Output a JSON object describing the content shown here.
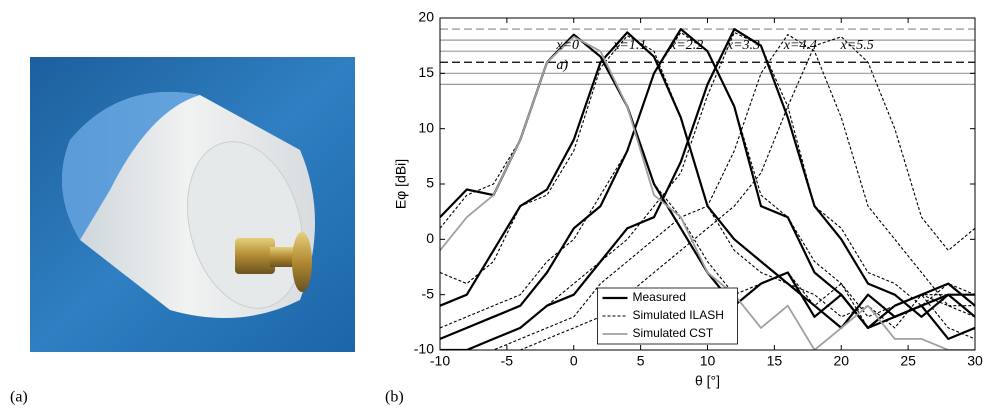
{
  "figure": {
    "panel_labels": [
      "(a)",
      "(b)"
    ]
  },
  "chart_data": {
    "type": "line",
    "x_label": "θ [°]",
    "y_label": "Eφ [dBi]",
    "panel_tag": "a)",
    "annotations": [
      "x=0",
      "x=1.1",
      "x=2.2",
      "x=3.3",
      "x=4.4",
      "x=5.5"
    ],
    "xlim": [
      -10,
      30
    ],
    "xticks": [
      -10,
      -5,
      0,
      5,
      10,
      15,
      20,
      25,
      30
    ],
    "ylim": [
      -10,
      20
    ],
    "yticks": [
      -10,
      -5,
      0,
      5,
      10,
      15,
      20
    ],
    "grid": false,
    "legend_position": "lower center",
    "hlines": [
      {
        "value": 19,
        "color": "#888888",
        "dash": true
      },
      {
        "value": 18,
        "color": "#999999",
        "dash": false
      },
      {
        "value": 17,
        "color": "#999999",
        "dash": false
      },
      {
        "value": 16,
        "color": "#000000",
        "dash": true
      },
      {
        "value": 15,
        "color": "#999999",
        "dash": false
      },
      {
        "value": 14,
        "color": "#999999",
        "dash": false
      }
    ],
    "x": [
      -10,
      -8,
      -6,
      -4,
      -2,
      0,
      2,
      4,
      6,
      8,
      10,
      12,
      14,
      16,
      18,
      20,
      22,
      24,
      26,
      28,
      30
    ],
    "series": [
      {
        "name": "Measured",
        "color": "#000000",
        "width": 2.2,
        "dash": false,
        "curves": [
          {
            "values": [
              2,
              4.5,
              4,
              9,
              16,
              18.5,
              16.5,
              12,
              5,
              1,
              -3,
              -6,
              -4,
              -3,
              -7,
              -5,
              -8,
              -7,
              -6,
              -9,
              -8
            ]
          },
          {
            "values": [
              -6,
              -5,
              -1,
              3,
              4.5,
              9,
              16,
              18.7,
              16.5,
              11,
              3,
              0,
              -2,
              -4,
              -6,
              -8,
              -5,
              -7,
              -6,
              -5,
              -7
            ]
          },
          {
            "values": [
              -9,
              -8,
              -7,
              -6,
              -3,
              1,
              3,
              8,
              15,
              19,
              17,
              12,
              3,
              2,
              -3,
              -5,
              -8,
              -6,
              -5,
              -4,
              -6
            ]
          },
          {
            "values": [
              -10,
              -10,
              -9,
              -8,
              -6,
              -5,
              -2,
              1,
              2,
              7,
              14,
              19,
              17.5,
              11,
              3,
              0,
              -4,
              -5,
              -7,
              -5,
              -5
            ]
          }
        ]
      },
      {
        "name": "Simulated ILASH",
        "color": "#000000",
        "width": 1.1,
        "dash": true,
        "curves": [
          {
            "values": [
              1,
              4,
              5,
              9,
              16,
              18.3,
              17,
              12,
              5,
              2,
              -2,
              -5,
              -4,
              -3,
              -6,
              -4,
              -8,
              -6,
              -5,
              -8,
              -9
            ]
          },
          {
            "values": [
              -3,
              -4,
              -2,
              3,
              4,
              8,
              15.5,
              18.4,
              17,
              11,
              3,
              -1,
              -3,
              -4,
              -5,
              -7,
              -6,
              -8,
              -5,
              -6,
              -7
            ]
          },
          {
            "values": [
              -8,
              -7,
              -6,
              -5,
              -2,
              0,
              4,
              8,
              15,
              18.7,
              17,
              12,
              4,
              2,
              -2,
              -4,
              -7,
              -6,
              -5,
              -5,
              -7
            ]
          },
          {
            "values": [
              -10,
              -10,
              -9,
              -8,
              -6,
              -4,
              -2,
              0,
              3,
              6,
              13,
              18.7,
              17.5,
              12,
              3,
              1,
              -3,
              -4,
              -6,
              -4,
              -5
            ]
          },
          {
            "values": [
              -10,
              -10,
              -10,
              -9,
              -8,
              -7,
              -4,
              -2,
              0,
              2,
              3,
              8,
              15,
              18.5,
              17,
              11,
              3,
              0,
              -3,
              -6,
              -6
            ]
          },
          {
            "values": [
              -10,
              -10,
              -10,
              -10,
              -9,
              -8,
              -7,
              -5,
              -3,
              -1,
              1,
              3,
              6,
              12,
              17.5,
              18.3,
              16,
              10,
              2,
              -1,
              1
            ]
          }
        ]
      },
      {
        "name": "Simulated CST",
        "color": "#a0a0a0",
        "width": 1.8,
        "dash": false,
        "curves": [
          {
            "values": [
              -1,
              2,
              4,
              9,
              16,
              18.3,
              17,
              12,
              4,
              2,
              -3,
              -5,
              -8,
              -6,
              -10,
              -8,
              -6,
              -9,
              -9,
              -10,
              -10
            ]
          }
        ]
      }
    ]
  }
}
